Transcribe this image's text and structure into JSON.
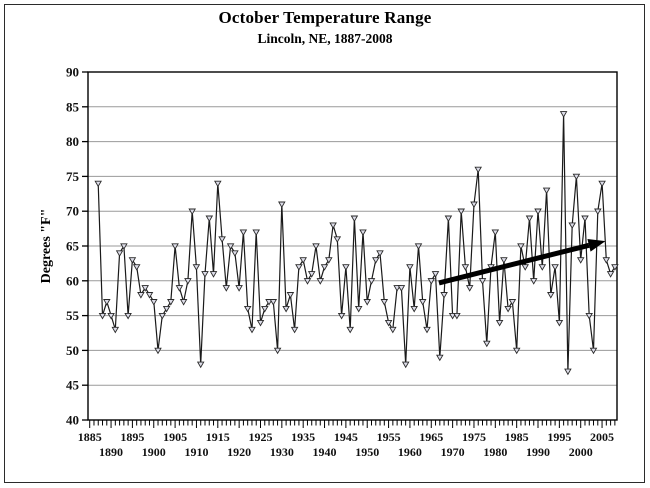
{
  "chart_data": {
    "type": "line",
    "title": "October Temperature Range",
    "subtitle": "Lincoln, NE, 1887-2008",
    "ylabel": "Degrees \"F\"",
    "ylim": [
      40,
      90
    ],
    "yticks": [
      40,
      45,
      50,
      55,
      60,
      65,
      70,
      75,
      80,
      85,
      90
    ],
    "xlim": [
      1884.6,
      2008.5
    ],
    "xtick_minor_step": 1,
    "xtick_labels_row1": [
      1885,
      1895,
      1905,
      1915,
      1925,
      1935,
      1945,
      1955,
      1965,
      1975,
      1985,
      1995,
      2005
    ],
    "xtick_labels_row2": [
      1890,
      1900,
      1910,
      1920,
      1930,
      1940,
      1950,
      1960,
      1970,
      1980,
      1990,
      2000
    ],
    "grid": "horizontal",
    "legend": "none",
    "start_year": 1887,
    "end_year": 2008,
    "values": [
      74,
      55,
      57,
      55,
      53,
      64,
      65,
      55,
      63,
      62,
      58,
      59,
      58,
      57,
      50,
      55,
      56,
      57,
      65,
      59,
      57,
      60,
      70,
      62,
      48,
      61,
      69,
      61,
      74,
      66,
      59,
      65,
      64,
      59,
      67,
      56,
      53,
      67,
      54,
      56,
      57,
      57,
      50,
      71,
      56,
      58,
      53,
      62,
      63,
      60,
      61,
      65,
      60,
      62,
      63,
      68,
      66,
      55,
      62,
      53,
      69,
      56,
      67,
      57,
      60,
      63,
      64,
      57,
      54,
      53,
      59,
      59,
      48,
      62,
      56,
      65,
      57,
      53,
      60,
      61,
      49,
      58,
      69,
      55,
      55,
      70,
      62,
      59,
      71,
      76,
      60,
      51,
      62,
      67,
      54,
      63,
      56,
      57,
      50,
      65,
      62,
      69,
      60,
      70,
      62,
      73,
      58,
      62,
      54,
      84,
      47,
      68,
      75,
      63,
      69,
      55,
      50,
      70,
      74,
      63,
      61,
      62
    ],
    "trend_arrow": {
      "x1_year": 1966.8,
      "y1_value": 59.7,
      "x2_year": 2005.8,
      "y2_value": 65.7,
      "color": "#000000",
      "shaft_width": 5
    },
    "colors": {
      "line": "#1a1a1a",
      "marker_stroke": "#2a2a2a",
      "marker_fill": "#dcdce8",
      "grid": "#9a9a9a",
      "axis_box": "#000000"
    }
  }
}
